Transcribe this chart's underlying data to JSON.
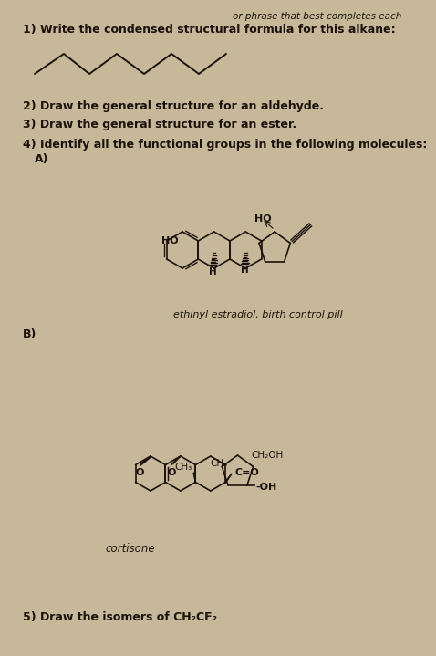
{
  "bg_color": "#c8b89a",
  "text_color": "#1a1208",
  "line_color": "#1a1208",
  "title_partial": "or phrase that best completes each",
  "q1_text": "1) Write the condensed structural formula for this alkane:",
  "q2_text": "2) Draw the general structure for an aldehyde.",
  "q3_text": "3) Draw the general structure for an ester.",
  "q4_text": "4) Identify all the functional groups in the following molecules:",
  "q4a_text": "A)",
  "q4b_text": "B)",
  "label_ethinyl": "ethinyl estradiol, birth control pill",
  "label_cortisone": "cortisone",
  "q5_text": "5) Draw the isomers of CH₂CF₂",
  "font_size_main": 9,
  "font_size_label": 8,
  "font_size_sub": 8
}
